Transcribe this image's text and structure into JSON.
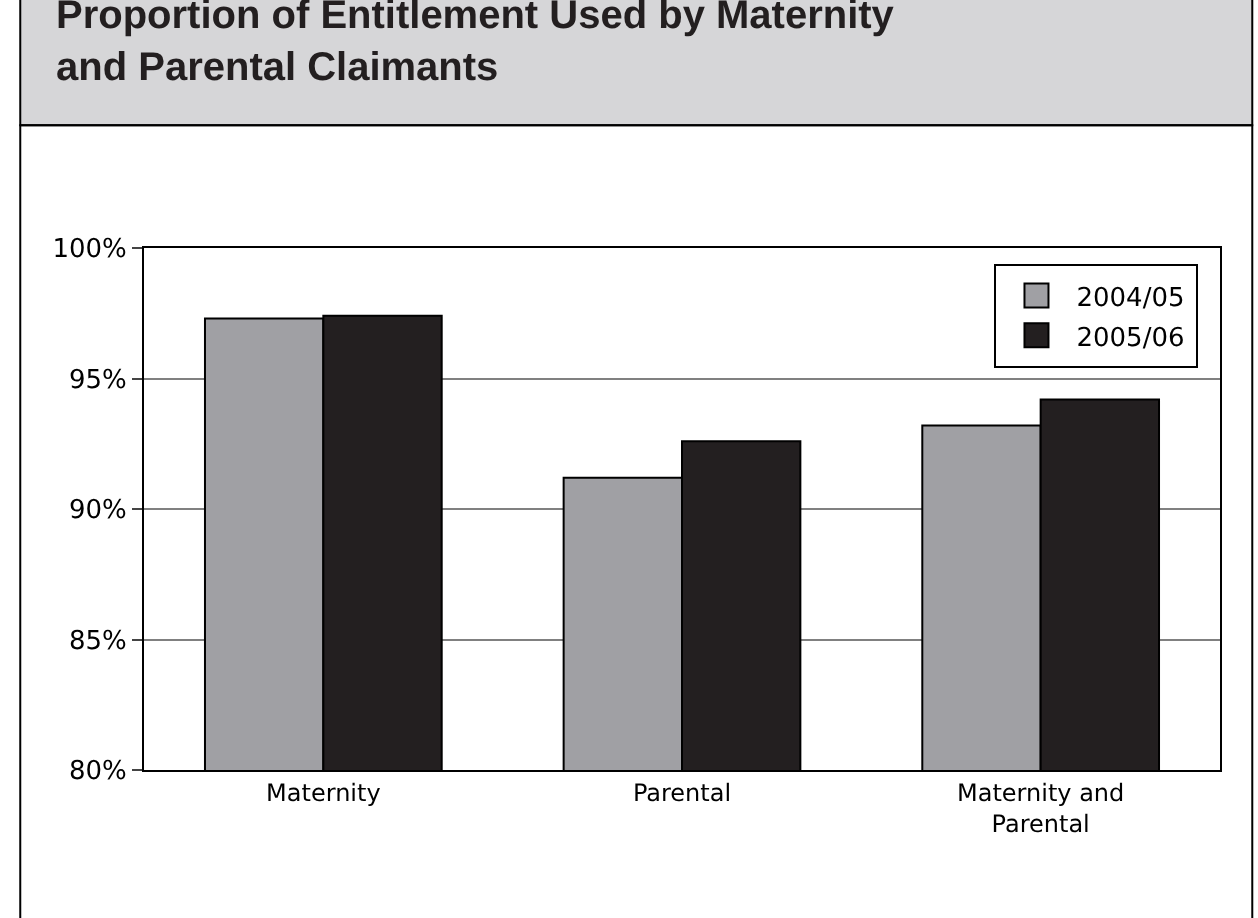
{
  "chart_data": {
    "type": "bar",
    "title": "Proportion of Entitlement Used by Maternity\nand Parental Claimants",
    "categories": [
      "Maternity",
      "Parental",
      "Maternity and\nParental"
    ],
    "series": [
      {
        "name": "2004/05",
        "color": "#a0a0a4",
        "values": [
          97.3,
          91.2,
          93.2
        ]
      },
      {
        "name": "2005/06",
        "color": "#231f20",
        "values": [
          97.4,
          92.6,
          94.2
        ]
      }
    ],
    "ylim": [
      80,
      100
    ],
    "yticks": [
      {
        "value": 80,
        "label": "80%"
      },
      {
        "value": 85,
        "label": "85%"
      },
      {
        "value": 90,
        "label": "90%"
      },
      {
        "value": 95,
        "label": "95%"
      },
      {
        "value": 100,
        "label": "100%"
      }
    ],
    "grid": "y",
    "legend": "top right"
  }
}
